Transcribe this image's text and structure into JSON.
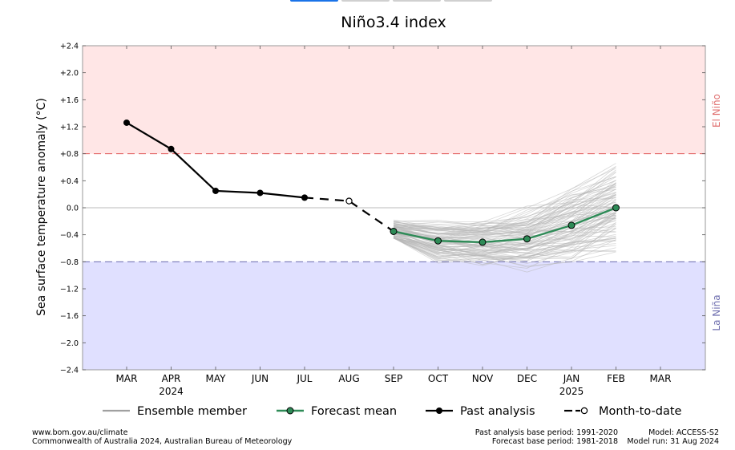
{
  "tabs": [
    {
      "label": ""
    },
    {
      "label": ""
    },
    {
      "label": ""
    },
    {
      "label": ""
    }
  ],
  "footer": {
    "source_url": "www.bom.gov.au/climate",
    "copyright": "Commonwealth of Australia 2024, Australian Bureau of Meteorology",
    "past_base": "Past analysis base period: 1991-2020",
    "forecast_base": "Forecast base period: 1981-2018",
    "model": "Model: ACCESS-S2",
    "model_run": "Model run: 31 Aug 2024"
  },
  "chart_data": {
    "type": "line",
    "title": "Niño3.4 index",
    "ylabel": "Sea surface temperature anomaly (°C)",
    "ylim": [
      -2.4,
      2.4
    ],
    "yticks": [
      "+2.4",
      "+2.0",
      "+1.6",
      "+1.2",
      "+0.8",
      "+0.4",
      "0.0",
      "−0.4",
      "−0.8",
      "−1.2",
      "−1.6",
      "−2.0",
      "−2.4"
    ],
    "ytick_values": [
      2.4,
      2.0,
      1.6,
      1.2,
      0.8,
      0.4,
      0.0,
      -0.4,
      -0.8,
      -1.2,
      -1.6,
      -2.0,
      -2.4
    ],
    "categories": [
      "MAR",
      "APR",
      "MAY",
      "JUN",
      "JUL",
      "AUG",
      "SEP",
      "OCT",
      "NOV",
      "DEC",
      "JAN",
      "FEB",
      "MAR"
    ],
    "year_labels": [
      {
        "index": 1,
        "label": "2024"
      },
      {
        "index": 10,
        "label": "2025"
      }
    ],
    "thresholds": {
      "el_nino": 0.8,
      "la_nina": -0.8,
      "el_nino_label": "El Niño",
      "la_nina_label": "La Niña",
      "el_nino_color": "#ffe6e6",
      "la_nina_color": "#e0e0ff",
      "el_nino_line": "#e05a5a",
      "la_nina_line": "#6a6ab0"
    },
    "series": [
      {
        "name": "Past analysis",
        "color": "#000000",
        "style": "solid",
        "marker": "filled",
        "x": [
          0,
          1,
          2,
          3,
          4
        ],
        "values": [
          1.26,
          0.87,
          0.25,
          0.22,
          0.15
        ]
      },
      {
        "name": "Month-to-date",
        "color": "#000000",
        "style": "dashed",
        "marker": "open",
        "x": [
          4,
          5,
          6
        ],
        "values": [
          0.15,
          0.1,
          -0.35
        ]
      },
      {
        "name": "Forecast mean",
        "color": "#2e8b57",
        "style": "solid",
        "marker": "filled",
        "x": [
          6,
          7,
          8,
          9,
          10,
          11
        ],
        "values": [
          -0.35,
          -0.49,
          -0.51,
          -0.46,
          -0.26,
          0.0
        ]
      }
    ],
    "ensemble": {
      "name": "Ensemble member",
      "color": "#b8b8b8",
      "count": 99,
      "x": [
        6,
        7,
        8,
        9,
        10,
        11
      ],
      "spread": [
        0.16,
        0.28,
        0.34,
        0.42,
        0.52,
        0.62
      ],
      "min": [
        -0.45,
        -1.02,
        -1.05,
        -1.03,
        -1.0,
        -0.9
      ],
      "max": [
        -0.15,
        -0.18,
        0.1,
        0.26,
        0.42,
        0.78
      ]
    },
    "legend": {
      "placement": "bottom",
      "items": [
        {
          "label": "Ensemble member",
          "key": "ensemble"
        },
        {
          "label": "Forecast mean",
          "key": "forecast"
        },
        {
          "label": "Past analysis",
          "key": "past"
        },
        {
          "label": "Month-to-date",
          "key": "mtd"
        }
      ]
    }
  }
}
